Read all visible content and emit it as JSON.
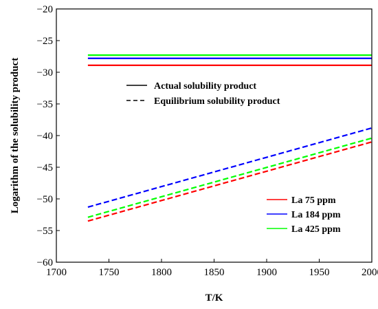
{
  "chart_data": {
    "type": "line",
    "xlabel": "T/K",
    "ylabel": "Logarithm of the solubility product",
    "xlim": [
      1700,
      2000
    ],
    "ylim": [
      -60,
      -20
    ],
    "x_ticks": [
      1700,
      1750,
      1800,
      1850,
      1900,
      1950,
      2000
    ],
    "y_ticks": [
      -60,
      -55,
      -50,
      -45,
      -40,
      -35,
      -30,
      -25,
      -20
    ],
    "x_tick_labels": [
      "1700",
      "1750",
      "1800",
      "1850",
      "1900",
      "1950",
      "2000"
    ],
    "y_tick_labels": [
      "−60",
      "−55",
      "−50",
      "−45",
      "−40",
      "−35",
      "−30",
      "−25",
      "−20"
    ],
    "grid": false,
    "style_legend": [
      {
        "label": "Actual solubility product",
        "dash": "solid"
      },
      {
        "label": "Equilibrium solubility product",
        "dash": "dashed"
      }
    ],
    "color_legend": [
      {
        "label": "La 75 ppm",
        "color": "#ff0000"
      },
      {
        "label": "La 184 ppm",
        "color": "#0000ff"
      },
      {
        "label": "La 425 ppm",
        "color": "#00ff00"
      }
    ],
    "series": [
      {
        "group": "La 75 ppm",
        "kind": "actual",
        "color": "#ff0000",
        "dash": "solid",
        "x": [
          1730,
          2000
        ],
        "y": [
          -28.9,
          -28.9
        ]
      },
      {
        "group": "La 184 ppm",
        "kind": "actual",
        "color": "#0000ff",
        "dash": "solid",
        "x": [
          1730,
          2000
        ],
        "y": [
          -27.8,
          -27.8
        ]
      },
      {
        "group": "La 425 ppm",
        "kind": "actual",
        "color": "#00ff00",
        "dash": "solid",
        "x": [
          1730,
          2000
        ],
        "y": [
          -27.3,
          -27.3
        ]
      },
      {
        "group": "La 75 ppm",
        "kind": "equilibrium",
        "color": "#ff0000",
        "dash": "dashed",
        "x": [
          1730,
          2000
        ],
        "y": [
          -53.5,
          -41.0
        ]
      },
      {
        "group": "La 184 ppm",
        "kind": "equilibrium",
        "color": "#0000ff",
        "dash": "dashed",
        "x": [
          1730,
          2000
        ],
        "y": [
          -51.3,
          -38.8
        ]
      },
      {
        "group": "La 425 ppm",
        "kind": "equilibrium",
        "color": "#00ff00",
        "dash": "dashed",
        "x": [
          1730,
          2000
        ],
        "y": [
          -52.9,
          -40.4
        ]
      }
    ]
  }
}
